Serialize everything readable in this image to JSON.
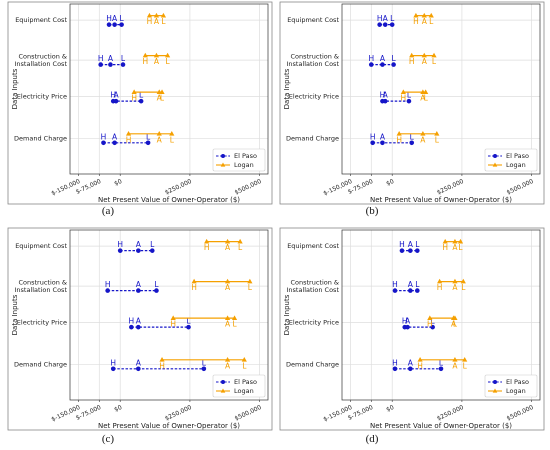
{
  "colors": {
    "el_paso": "#1515c8",
    "logan": "#f5a000",
    "grid": "#dddddd",
    "frame": "#888888"
  },
  "chart_data": [
    {
      "type": "range",
      "panel_label": "(a)",
      "xlabel": "Net Present Value of Owner-Operator ($)",
      "ylabel": "Data Inputs",
      "xlim": [
        -180000,
        530000
      ],
      "xticks": [
        -150000,
        -75000,
        0,
        250000,
        500000
      ],
      "xtick_labels": [
        "$-150,000",
        "$-75,000",
        "$0",
        "$250,000",
        "$500,000"
      ],
      "grid": true,
      "legend_position": "lower right",
      "categories": [
        "Equipment Cost",
        "Construction &\nInstallation Cost",
        "Electricity Price",
        "Demand Charge"
      ],
      "point_labels": [
        "H",
        "A",
        "L"
      ],
      "series": [
        {
          "name": "El Paso",
          "marker": "circle",
          "line": "dashed",
          "values": [
            [
              -40000,
              -20000,
              5000
            ],
            [
              -70000,
              -35000,
              10000
            ],
            [
              -25000,
              -15000,
              75000
            ],
            [
              -60000,
              -20000,
              100000
            ]
          ]
        },
        {
          "name": "Logan",
          "marker": "triangle",
          "line": "solid",
          "values": [
            [
              105000,
              130000,
              155000
            ],
            [
              90000,
              130000,
              170000
            ],
            [
              50000,
              140000,
              150000
            ],
            [
              30000,
              140000,
              185000
            ]
          ]
        }
      ]
    },
    {
      "type": "range",
      "panel_label": "(b)",
      "xlabel": "Net Present Value of Owner-Operator ($)",
      "ylabel": "Data Inputs",
      "xlim": [
        -180000,
        530000
      ],
      "xticks": [
        -150000,
        -75000,
        0,
        250000,
        500000
      ],
      "xtick_labels": [
        "$-150,000",
        "$-75,000",
        "$0",
        "$250,000",
        "$500,000"
      ],
      "grid": true,
      "legend_position": "lower right",
      "categories": [
        "Equipment Cost",
        "Construction &\nInstallation Cost",
        "Electricity Price",
        "Demand Charge"
      ],
      "point_labels": [
        "H",
        "A",
        "L"
      ],
      "series": [
        {
          "name": "El Paso",
          "marker": "circle",
          "line": "dashed",
          "values": [
            [
              -45000,
              -25000,
              0
            ],
            [
              -75000,
              -35000,
              5000
            ],
            [
              -35000,
              -25000,
              60000
            ],
            [
              -70000,
              -35000,
              70000
            ]
          ]
        },
        {
          "name": "Logan",
          "marker": "triangle",
          "line": "solid",
          "values": [
            [
              85000,
              115000,
              140000
            ],
            [
              70000,
              115000,
              150000
            ],
            [
              40000,
              110000,
              120000
            ],
            [
              25000,
              110000,
              160000
            ]
          ]
        }
      ]
    },
    {
      "type": "range",
      "panel_label": "(c)",
      "xlabel": "Net Present Value of Owner-Operator ($)",
      "ylabel": "Data Inputs",
      "xlim": [
        -180000,
        530000
      ],
      "xticks": [
        -150000,
        -75000,
        0,
        250000,
        500000
      ],
      "xtick_labels": [
        "$-150,000",
        "$-75,000",
        "$0",
        "$250,000",
        "$500,000"
      ],
      "grid": true,
      "legend_position": "lower right",
      "categories": [
        "Equipment Cost",
        "Construction &\nInstallation Cost",
        "Electricity Price",
        "Demand Charge"
      ],
      "point_labels": [
        "H",
        "A",
        "L"
      ],
      "series": [
        {
          "name": "El Paso",
          "marker": "circle",
          "line": "dashed",
          "values": [
            [
              0,
              65000,
              115000
            ],
            [
              -45000,
              65000,
              130000
            ],
            [
              40000,
              65000,
              245000
            ],
            [
              -25000,
              65000,
              300000
            ]
          ]
        },
        {
          "name": "Logan",
          "marker": "triangle",
          "line": "solid",
          "values": [
            [
              310000,
              385000,
              430000
            ],
            [
              265000,
              385000,
              465000
            ],
            [
              190000,
              385000,
              410000
            ],
            [
              150000,
              385000,
              445000
            ]
          ]
        }
      ]
    },
    {
      "type": "range",
      "panel_label": "(d)",
      "xlabel": "Net Present Value of Owner-Operator ($)",
      "ylabel": "Data Inputs",
      "xlim": [
        -180000,
        530000
      ],
      "xticks": [
        -150000,
        -75000,
        0,
        250000,
        500000
      ],
      "xtick_labels": [
        "$-150,000",
        "$-75,000",
        "$0",
        "$250,000",
        "$500,000"
      ],
      "grid": true,
      "legend_position": "lower right",
      "categories": [
        "Equipment Cost",
        "Construction &\nInstallation Cost",
        "Electricity Price",
        "Demand Charge"
      ],
      "point_labels": [
        "H",
        "A",
        "L"
      ],
      "series": [
        {
          "name": "El Paso",
          "marker": "circle",
          "line": "dashed",
          "values": [
            [
              35000,
              65000,
              90000
            ],
            [
              10000,
              65000,
              90000
            ],
            [
              45000,
              55000,
              145000
            ],
            [
              10000,
              65000,
              175000
            ]
          ]
        },
        {
          "name": "Logan",
          "marker": "triangle",
          "line": "solid",
          "values": [
            [
              190000,
              225000,
              245000
            ],
            [
              170000,
              225000,
              255000
            ],
            [
              135000,
              220000,
              225000
            ],
            [
              100000,
              225000,
              260000
            ]
          ]
        }
      ]
    }
  ]
}
